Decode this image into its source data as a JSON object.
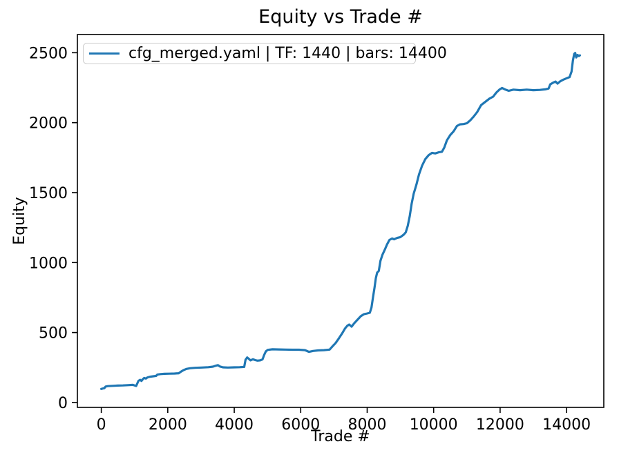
{
  "chart_data": {
    "type": "line",
    "title": "Equity vs Trade #",
    "xlabel": "Trade #",
    "ylabel": "Equity",
    "xlim": [
      -720,
      15120
    ],
    "ylim": [
      -35,
      2630
    ],
    "x_ticks": [
      0,
      2000,
      4000,
      6000,
      8000,
      10000,
      12000,
      14000
    ],
    "y_ticks": [
      0,
      500,
      1000,
      1500,
      2000,
      2500
    ],
    "grid": false,
    "legend_position": "upper left",
    "axes_color": "#000000",
    "series": [
      {
        "name": "cfg_merged.yaml | TF: 1440 | bars: 14400",
        "color": "#1f77b4",
        "points": [
          [
            0,
            97
          ],
          [
            50,
            100
          ],
          [
            90,
            102
          ],
          [
            130,
            114
          ],
          [
            200,
            117
          ],
          [
            350,
            119
          ],
          [
            500,
            121
          ],
          [
            650,
            122
          ],
          [
            800,
            124
          ],
          [
            950,
            126
          ],
          [
            1010,
            121
          ],
          [
            1050,
            118
          ],
          [
            1080,
            135
          ],
          [
            1120,
            155
          ],
          [
            1170,
            162
          ],
          [
            1210,
            154
          ],
          [
            1250,
            167
          ],
          [
            1290,
            175
          ],
          [
            1340,
            171
          ],
          [
            1390,
            179
          ],
          [
            1460,
            184
          ],
          [
            1560,
            187
          ],
          [
            1650,
            190
          ],
          [
            1690,
            200
          ],
          [
            1780,
            203
          ],
          [
            1900,
            205
          ],
          [
            2050,
            206
          ],
          [
            2200,
            207
          ],
          [
            2330,
            209
          ],
          [
            2390,
            219
          ],
          [
            2470,
            231
          ],
          [
            2560,
            240
          ],
          [
            2670,
            245
          ],
          [
            2820,
            248
          ],
          [
            3020,
            250
          ],
          [
            3220,
            252
          ],
          [
            3360,
            256
          ],
          [
            3460,
            264
          ],
          [
            3510,
            267
          ],
          [
            3570,
            257
          ],
          [
            3660,
            251
          ],
          [
            3810,
            250
          ],
          [
            4000,
            251
          ],
          [
            4160,
            252
          ],
          [
            4300,
            254
          ],
          [
            4340,
            305
          ],
          [
            4390,
            322
          ],
          [
            4440,
            312
          ],
          [
            4490,
            301
          ],
          [
            4560,
            309
          ],
          [
            4630,
            303
          ],
          [
            4700,
            299
          ],
          [
            4780,
            301
          ],
          [
            4850,
            308
          ],
          [
            4900,
            340
          ],
          [
            4950,
            365
          ],
          [
            5010,
            376
          ],
          [
            5150,
            380
          ],
          [
            5350,
            379
          ],
          [
            5550,
            378
          ],
          [
            5750,
            377
          ],
          [
            5950,
            377
          ],
          [
            6130,
            374
          ],
          [
            6250,
            362
          ],
          [
            6370,
            368
          ],
          [
            6520,
            372
          ],
          [
            6700,
            374
          ],
          [
            6870,
            378
          ],
          [
            6950,
            400
          ],
          [
            7050,
            425
          ],
          [
            7150,
            459
          ],
          [
            7250,
            495
          ],
          [
            7330,
            528
          ],
          [
            7400,
            548
          ],
          [
            7460,
            557
          ],
          [
            7530,
            542
          ],
          [
            7610,
            566
          ],
          [
            7710,
            592
          ],
          [
            7810,
            617
          ],
          [
            7900,
            631
          ],
          [
            8000,
            636
          ],
          [
            8080,
            641
          ],
          [
            8130,
            678
          ],
          [
            8170,
            745
          ],
          [
            8220,
            820
          ],
          [
            8260,
            888
          ],
          [
            8300,
            928
          ],
          [
            8350,
            940
          ],
          [
            8400,
            1012
          ],
          [
            8460,
            1056
          ],
          [
            8530,
            1092
          ],
          [
            8600,
            1130
          ],
          [
            8670,
            1162
          ],
          [
            8750,
            1172
          ],
          [
            8810,
            1166
          ],
          [
            8900,
            1176
          ],
          [
            9000,
            1182
          ],
          [
            9100,
            1200
          ],
          [
            9160,
            1216
          ],
          [
            9220,
            1262
          ],
          [
            9280,
            1332
          ],
          [
            9340,
            1422
          ],
          [
            9400,
            1492
          ],
          [
            9480,
            1556
          ],
          [
            9560,
            1630
          ],
          [
            9650,
            1692
          ],
          [
            9750,
            1740
          ],
          [
            9850,
            1768
          ],
          [
            9950,
            1784
          ],
          [
            10050,
            1780
          ],
          [
            10150,
            1788
          ],
          [
            10250,
            1792
          ],
          [
            10320,
            1822
          ],
          [
            10400,
            1874
          ],
          [
            10500,
            1912
          ],
          [
            10600,
            1938
          ],
          [
            10700,
            1976
          ],
          [
            10790,
            1988
          ],
          [
            10900,
            1990
          ],
          [
            11000,
            1996
          ],
          [
            11100,
            2016
          ],
          [
            11200,
            2042
          ],
          [
            11310,
            2076
          ],
          [
            11430,
            2126
          ],
          [
            11560,
            2150
          ],
          [
            11680,
            2172
          ],
          [
            11790,
            2186
          ],
          [
            11890,
            2216
          ],
          [
            11980,
            2236
          ],
          [
            12060,
            2248
          ],
          [
            12160,
            2236
          ],
          [
            12260,
            2228
          ],
          [
            12400,
            2236
          ],
          [
            12600,
            2232
          ],
          [
            12800,
            2236
          ],
          [
            13000,
            2232
          ],
          [
            13200,
            2234
          ],
          [
            13360,
            2238
          ],
          [
            13460,
            2244
          ],
          [
            13510,
            2274
          ],
          [
            13610,
            2288
          ],
          [
            13670,
            2294
          ],
          [
            13730,
            2279
          ],
          [
            13810,
            2296
          ],
          [
            13910,
            2308
          ],
          [
            14010,
            2318
          ],
          [
            14090,
            2326
          ],
          [
            14150,
            2365
          ],
          [
            14190,
            2445
          ],
          [
            14230,
            2492
          ],
          [
            14260,
            2498
          ],
          [
            14290,
            2466
          ],
          [
            14330,
            2484
          ],
          [
            14370,
            2476
          ],
          [
            14400,
            2481
          ]
        ]
      }
    ]
  },
  "legend": {
    "label": "cfg_merged.yaml | TF: 1440 | bars: 14400"
  }
}
